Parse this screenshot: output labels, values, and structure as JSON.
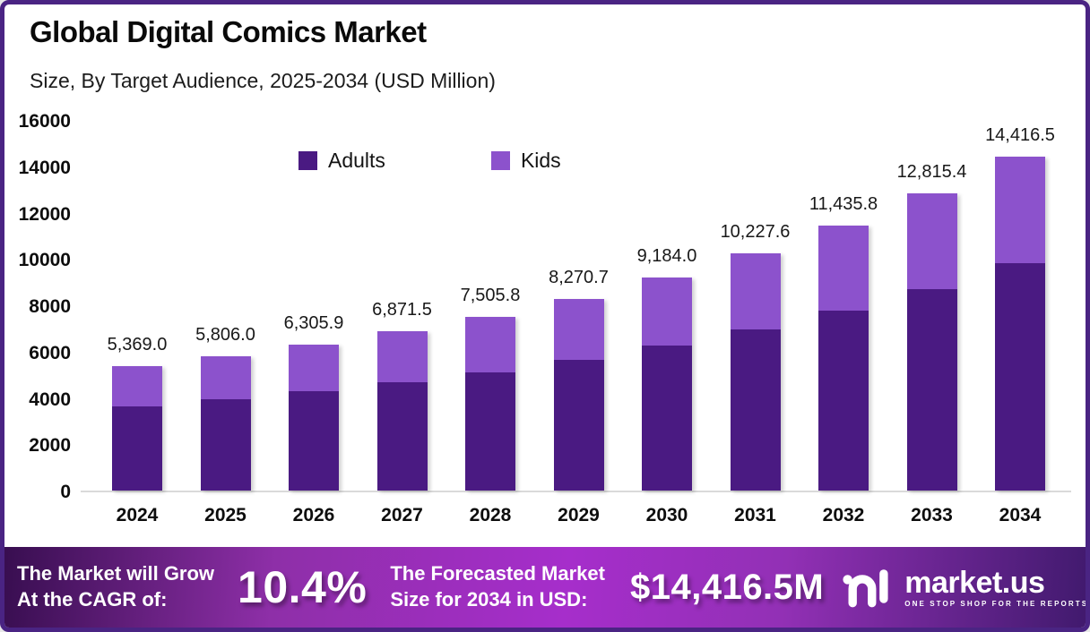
{
  "header": {
    "title": "Global Digital Comics Market",
    "subtitle": "Size, By Target Audience, 2025-2034 (USD Million)"
  },
  "chart_data": {
    "type": "bar",
    "stacked": true,
    "title": "Global Digital Comics Market Size, By Target Audience, 2025-2034 (USD Million)",
    "categories": [
      "2024",
      "2025",
      "2026",
      "2027",
      "2028",
      "2029",
      "2030",
      "2031",
      "2032",
      "2033",
      "2034"
    ],
    "series": [
      {
        "name": "Adults",
        "color": "#4A1A82",
        "values": [
          3650.9,
          3948.1,
          4288.0,
          4672.6,
          5103.9,
          5624.1,
          6245.1,
          6954.8,
          7776.3,
          8714.5,
          9803.2
        ]
      },
      {
        "name": "Kids",
        "color": "#8C52CC",
        "values": [
          1718.1,
          1857.9,
          2017.9,
          2198.9,
          2401.9,
          2646.6,
          2938.9,
          3272.8,
          3659.5,
          4100.9,
          4613.3
        ]
      }
    ],
    "totals": [
      5369.0,
      5806.0,
      6305.9,
      6871.5,
      7505.8,
      8270.7,
      9184.0,
      10227.6,
      11435.8,
      12815.4,
      14416.5
    ],
    "total_labels": [
      "5,369.0",
      "5,806.0",
      "6,305.9",
      "6,871.5",
      "7,505.8",
      "8,270.7",
      "9,184.0",
      "10,227.6",
      "11,435.8",
      "12,815.4",
      "14,416.5"
    ],
    "ylabel": "",
    "xlabel": "",
    "ylim": [
      0,
      16000
    ],
    "yticks": [
      0,
      2000,
      4000,
      6000,
      8000,
      10000,
      12000,
      14000,
      16000
    ],
    "grid": false,
    "legend_position": "top-center"
  },
  "footer": {
    "cagr_label_line1": "The Market will Grow",
    "cagr_label_line2": "At the CAGR of:",
    "cagr_value": "10.4%",
    "forecast_label_line1": "The Forecasted Market",
    "forecast_label_line2": "Size for 2034 in USD:",
    "forecast_value": "$14,416.5M",
    "brand_name": "market.us",
    "brand_tagline": "ONE STOP SHOP FOR THE REPORTS"
  },
  "colors": {
    "border": "#4A2483",
    "adults": "#4A1A82",
    "kids": "#8C52CC",
    "banner_left": "#380E50",
    "banner_center": "#A62ECB",
    "banner_right": "#411A6E"
  }
}
